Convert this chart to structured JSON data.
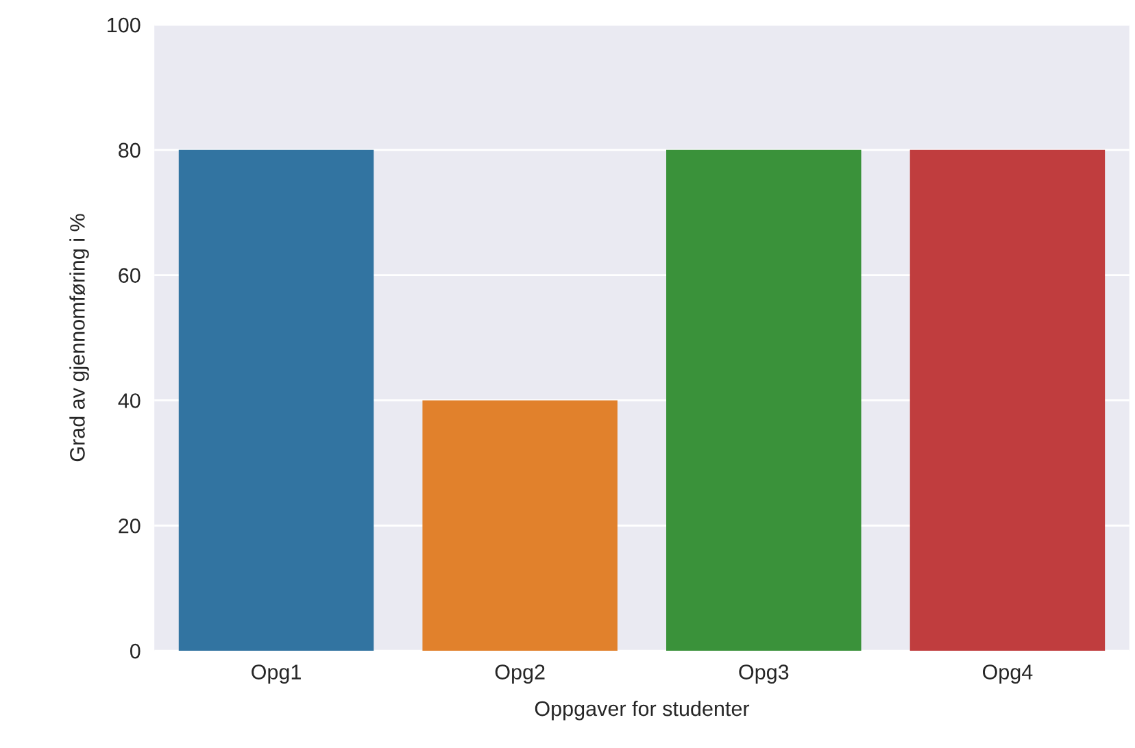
{
  "chart_data": {
    "type": "bar",
    "categories": [
      "Opg1",
      "Opg2",
      "Opg3",
      "Opg4"
    ],
    "values": [
      80,
      40,
      80,
      80
    ],
    "colors": [
      "#3274a1",
      "#e1812c",
      "#3a923a",
      "#c03d3e"
    ],
    "xlabel": "Oppgaver for studenter",
    "ylabel": "Grad av gjennomføring i %",
    "ylim": [
      0,
      100
    ],
    "yticks": [
      0,
      20,
      40,
      60,
      80,
      100
    ],
    "grid": "y"
  }
}
